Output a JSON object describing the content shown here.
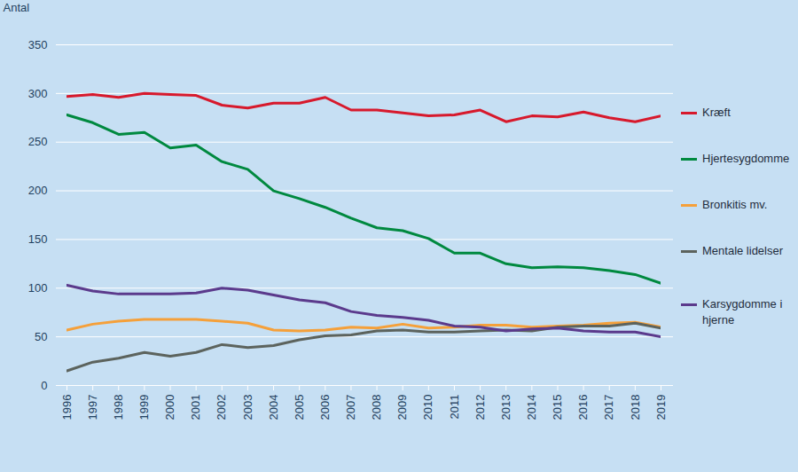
{
  "chart_data": {
    "type": "line",
    "y_label": "Antal",
    "x": [
      1996,
      1997,
      1998,
      1999,
      2000,
      2001,
      2002,
      2003,
      2004,
      2005,
      2006,
      2007,
      2008,
      2009,
      2010,
      2011,
      2012,
      2013,
      2014,
      2015,
      2016,
      2017,
      2018,
      2019
    ],
    "xlim": [
      1996,
      2019
    ],
    "xticks": [
      1996,
      1997,
      1998,
      1999,
      2000,
      2001,
      2002,
      2003,
      2004,
      2005,
      2006,
      2007,
      2008,
      2009,
      2010,
      2011,
      2012,
      2013,
      2014,
      2015,
      2016,
      2017,
      2018,
      2019
    ],
    "ylim": [
      0,
      350
    ],
    "yticks": [
      0,
      50,
      100,
      150,
      200,
      250,
      300,
      350
    ],
    "grid": true,
    "legend": "right",
    "series": [
      {
        "name": "Kræft",
        "color": "#d7192c",
        "values": [
          297,
          299,
          296,
          300,
          299,
          298,
          288,
          285,
          290,
          290,
          296,
          283,
          283,
          280,
          277,
          278,
          283,
          271,
          277,
          276,
          281,
          275,
          271,
          277
        ]
      },
      {
        "name": "Hjertesygdomme",
        "color": "#00893f",
        "values": [
          278,
          270,
          258,
          260,
          244,
          247,
          230,
          222,
          200,
          192,
          183,
          172,
          162,
          159,
          151,
          136,
          136,
          125,
          121,
          122,
          121,
          118,
          114,
          105
        ]
      },
      {
        "name": "Bronkitis mv.",
        "color": "#f5a03a",
        "values": [
          57,
          63,
          66,
          68,
          68,
          68,
          66,
          64,
          57,
          56,
          57,
          60,
          59,
          63,
          59,
          60,
          62,
          62,
          60,
          61,
          62,
          64,
          65,
          60
        ]
      },
      {
        "name": "Mentale lidelser",
        "color": "#5c635d",
        "values": [
          15,
          24,
          28,
          34,
          30,
          34,
          42,
          39,
          41,
          47,
          51,
          52,
          56,
          57,
          55,
          55,
          56,
          57,
          56,
          60,
          61,
          61,
          64,
          59
        ]
      },
      {
        "name": "Karsygdomme i hjerne",
        "color": "#5b3a8c",
        "values": [
          103,
          97,
          94,
          94,
          94,
          95,
          100,
          98,
          93,
          88,
          85,
          76,
          72,
          70,
          67,
          61,
          60,
          56,
          58,
          59,
          56,
          55,
          55,
          50
        ]
      }
    ]
  }
}
